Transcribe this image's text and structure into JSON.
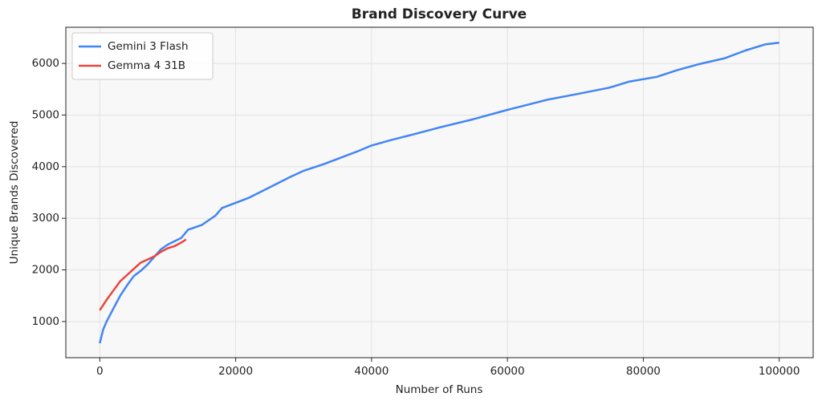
{
  "chart_data": {
    "type": "line",
    "title": "Brand Discovery Curve",
    "x_label": "Number of Runs",
    "y_label": "Unique Brands Discovered",
    "xlim": [
      -5000,
      105000
    ],
    "ylim": [
      300,
      6700
    ],
    "xticks": [
      0,
      20000,
      40000,
      60000,
      80000,
      100000
    ],
    "yticks": [
      1000,
      2000,
      3000,
      4000,
      5000,
      6000
    ],
    "grid": true,
    "legend": "upper left",
    "series": [
      {
        "name": "Gemini 3 Flash",
        "color": "#4285f4",
        "x": [
          0,
          500,
          1000,
          2000,
          3000,
          4000,
          5000,
          6000,
          7000,
          8000,
          9000,
          10000,
          12000,
          13000,
          15000,
          17000,
          18000,
          20000,
          22000,
          25000,
          28000,
          30000,
          33000,
          36000,
          38000,
          40000,
          43000,
          46000,
          50000,
          55000,
          60000,
          63000,
          66000,
          70000,
          75000,
          78000,
          82000,
          85000,
          88000,
          92000,
          95000,
          98000,
          100000
        ],
        "values": [
          580,
          850,
          1000,
          1250,
          1500,
          1700,
          1880,
          1980,
          2100,
          2250,
          2400,
          2490,
          2620,
          2780,
          2870,
          3050,
          3200,
          3300,
          3400,
          3600,
          3800,
          3920,
          4050,
          4200,
          4300,
          4410,
          4520,
          4620,
          4760,
          4920,
          5100,
          5200,
          5300,
          5400,
          5530,
          5650,
          5740,
          5870,
          5980,
          6100,
          6250,
          6370,
          6400
        ]
      },
      {
        "name": "Gemma 4 31B",
        "color": "#e8453c",
        "x": [
          0,
          1000,
          2000,
          3000,
          4000,
          5000,
          6000,
          7000,
          8000,
          9000,
          10000,
          11000,
          12000,
          12700
        ],
        "values": [
          1220,
          1420,
          1600,
          1780,
          1900,
          2020,
          2140,
          2200,
          2260,
          2350,
          2420,
          2460,
          2530,
          2590
        ]
      }
    ]
  }
}
